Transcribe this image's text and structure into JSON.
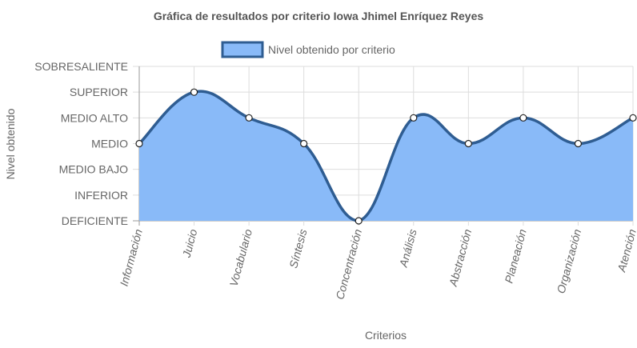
{
  "chart_data": {
    "type": "area",
    "title": "Gráfica de resultados por criterio Iowa Jhimel Enríquez Reyes",
    "xlabel": "Criterios",
    "ylabel": "Nivel obtenido",
    "levels": [
      "DEFICIENTE",
      "INFERIOR",
      "MEDIO BAJO",
      "MEDIO",
      "MEDIO ALTO",
      "SUPERIOR",
      "SOBRESALIENTE"
    ],
    "categories": [
      "Información",
      "Juicio",
      "Vocabulario",
      "Síntesis",
      "Concentración",
      "Análisis",
      "Abstracción",
      "Planeación",
      "Organización",
      "Atención"
    ],
    "series": [
      {
        "name": "Nivel obtenido por criterio",
        "values": [
          "MEDIO",
          "SUPERIOR",
          "MEDIO ALTO",
          "MEDIO",
          "DEFICIENTE",
          "MEDIO ALTO",
          "MEDIO",
          "MEDIO ALTO",
          "MEDIO",
          "MEDIO ALTO"
        ],
        "level_index": [
          3,
          5,
          4,
          3,
          0,
          4,
          3,
          4,
          3,
          4
        ]
      }
    ],
    "ylim": [
      "DEFICIENTE",
      "SOBRESALIENTE"
    ],
    "grid": true,
    "legend": "top",
    "colors": {
      "fill": "#89baf8",
      "line": "#2f5d92",
      "grid": "#dddddd",
      "axis": "#999999"
    }
  }
}
